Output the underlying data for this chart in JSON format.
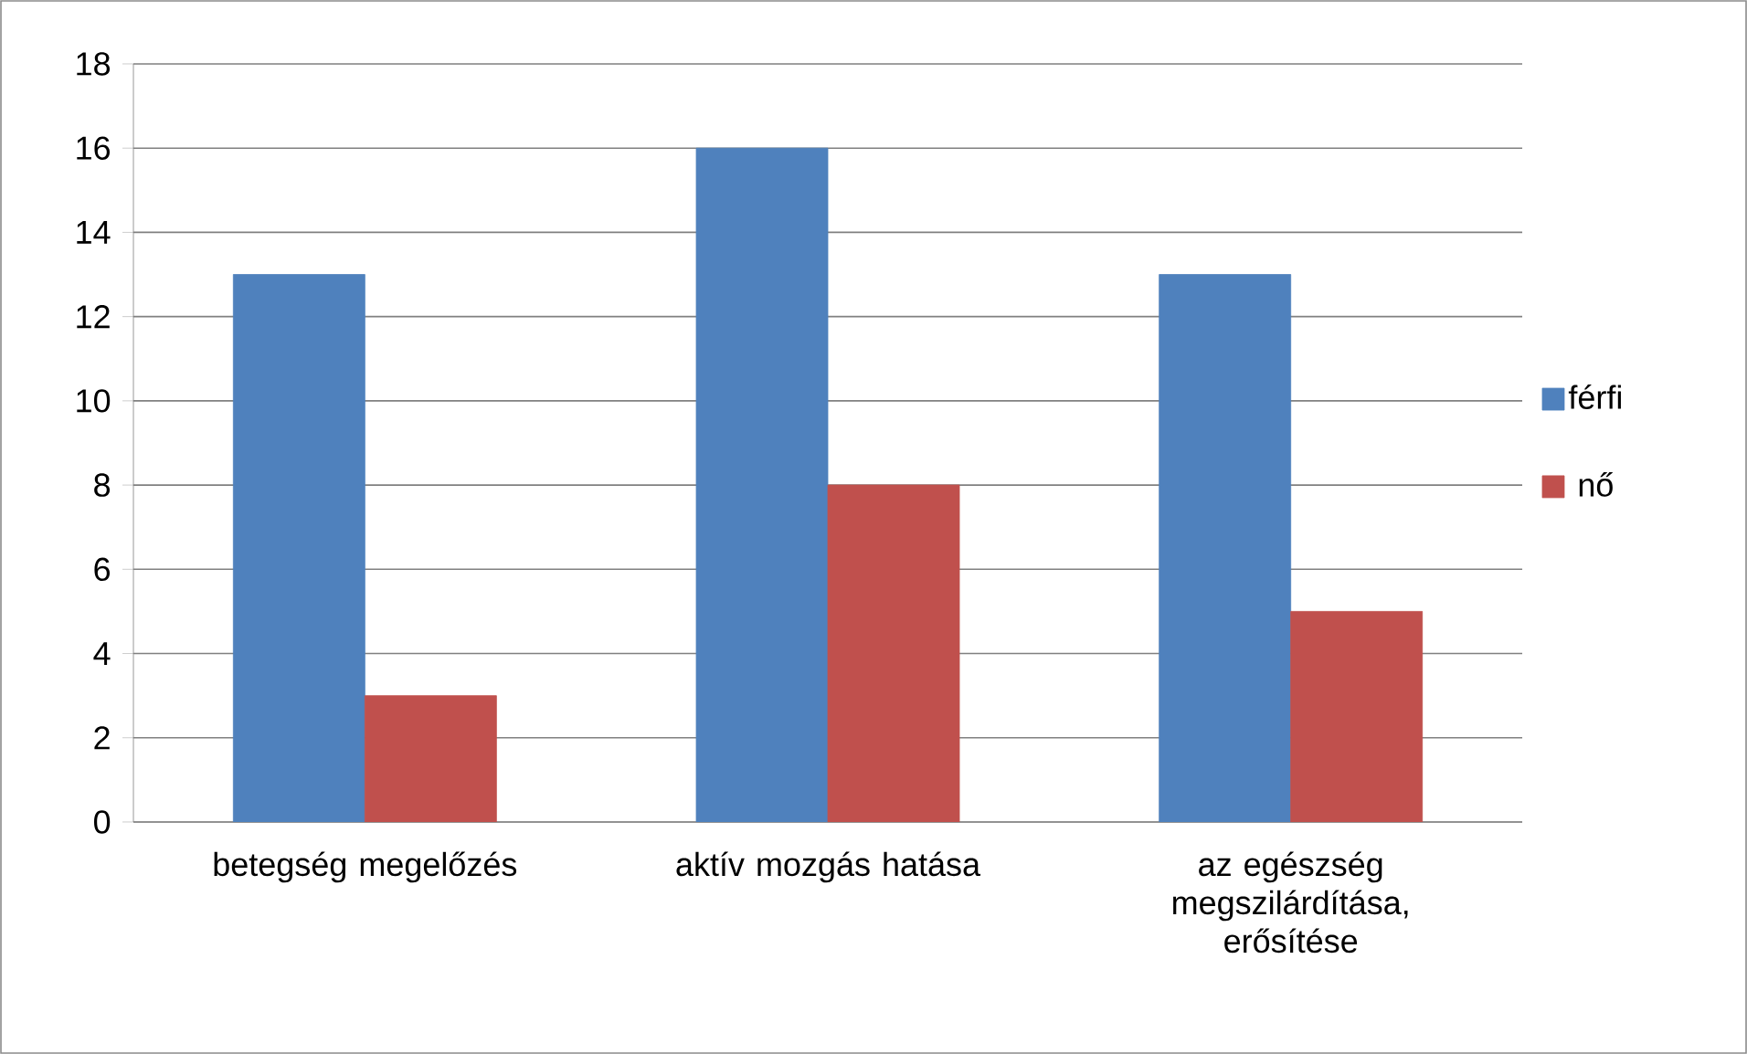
{
  "chart_data": {
    "type": "bar",
    "categories": [
      "betegség megelőzés",
      "aktív mozgás hatása",
      "az egészség megszilárdítása, erősítése"
    ],
    "series": [
      {
        "name": "férfi",
        "color": "#4f81bd",
        "values": [
          13,
          16,
          13
        ]
      },
      {
        "name": "nő",
        "color": "#c0504d",
        "values": [
          3,
          8,
          5
        ]
      }
    ],
    "ylim": [
      0,
      18
    ],
    "yticks": [
      0,
      2,
      4,
      6,
      8,
      10,
      12,
      14,
      16,
      18
    ],
    "grid": "y",
    "legend": "right"
  }
}
